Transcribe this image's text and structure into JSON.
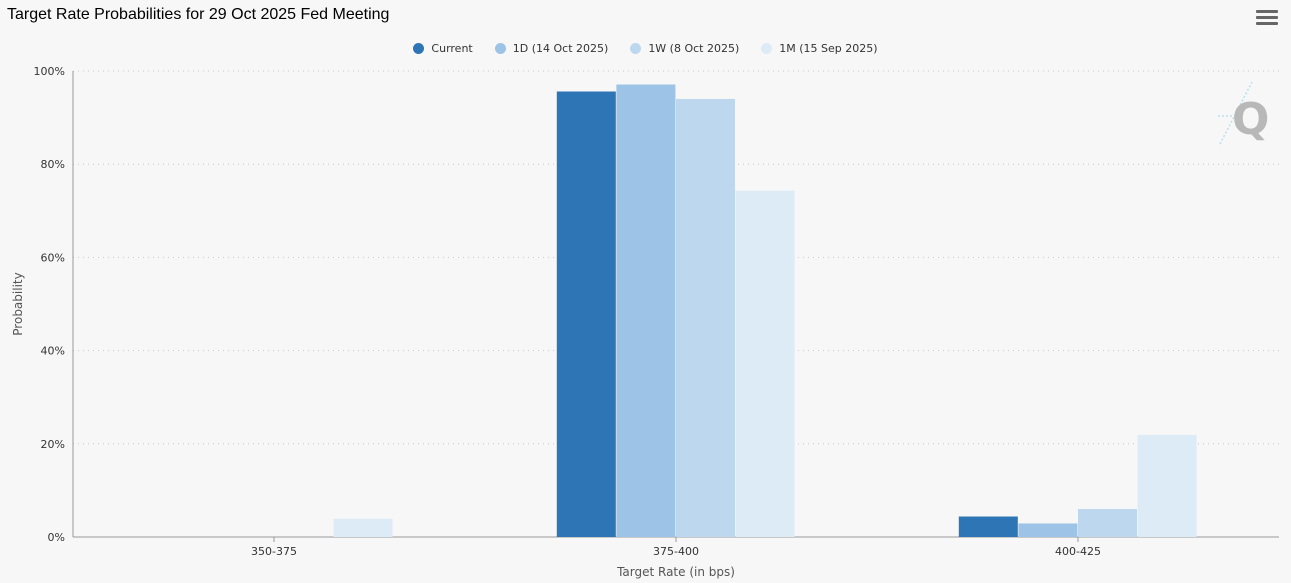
{
  "title": "Target Rate Probabilities for 29 Oct 2025 Fed Meeting",
  "menu_icon": "hamburger-menu-icon",
  "watermark_icon": "q-logo-icon",
  "chart_data": {
    "type": "bar",
    "categories": [
      "350-375",
      "375-400",
      "400-425"
    ],
    "series": [
      {
        "name": "Current",
        "color": "#2e75b6",
        "values": [
          0.0,
          95.6,
          4.4
        ]
      },
      {
        "name": "1D (14 Oct 2025)",
        "color": "#9dc3e6",
        "values": [
          0.0,
          97.1,
          2.9
        ]
      },
      {
        "name": "1W (8 Oct 2025)",
        "color": "#bdd7ee",
        "values": [
          0.0,
          94.0,
          6.0
        ]
      },
      {
        "name": "1M (15 Sep 2025)",
        "color": "#ddebf7",
        "values": [
          3.9,
          74.3,
          21.9
        ]
      }
    ],
    "xlabel": "Target Rate (in bps)",
    "ylabel": "Probability",
    "ylim": [
      0,
      100
    ],
    "yticks": [
      "0%",
      "20%",
      "40%",
      "60%",
      "80%",
      "100%"
    ],
    "grid": true,
    "legend_position": "top-center"
  }
}
